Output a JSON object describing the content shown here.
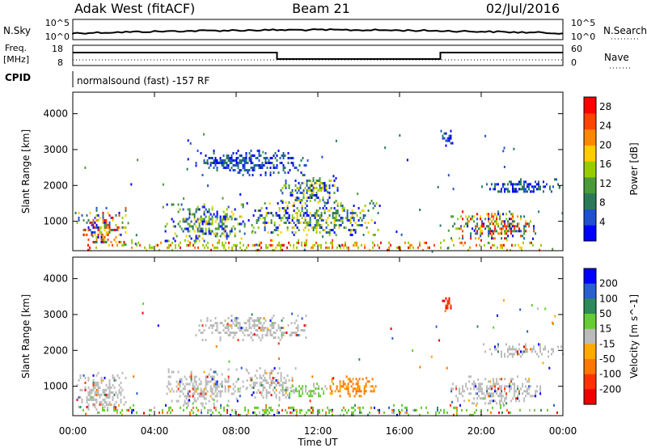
{
  "header": {
    "station": "Adak West (fitACF)",
    "beam": "Beam 21",
    "date": "02/Jul/2016"
  },
  "top_panels": {
    "nsky": {
      "label": "N.Sky",
      "ticks": [
        "10^5",
        "10^0"
      ]
    },
    "nsearch": {
      "label": "N.Search",
      "ticks": [
        "10^5",
        "10^0"
      ]
    },
    "freq": {
      "label_line1": "Freq.",
      "label_line2": "[MHz]",
      "ticks": [
        "18",
        "8"
      ]
    },
    "nave": {
      "label": "Nave",
      "ticks": [
        "60",
        "0"
      ]
    },
    "cpid": {
      "label": "CPID",
      "text": "normalsound (fast) -157 RF"
    }
  },
  "chart_data": [
    {
      "type": "heatmap",
      "panel": "power",
      "ylabel": "Slant Range [km]",
      "xlabel": "Time UT",
      "x_ticks": [
        "00:00",
        "04:00",
        "08:00",
        "12:00",
        "16:00",
        "20:00",
        "00:00"
      ],
      "y_ticks": [
        1000,
        2000,
        3000,
        4000
      ],
      "ylim": [
        180,
        4600
      ],
      "xlim_hours": [
        0,
        24
      ],
      "colorbar": {
        "label": "Power [dB]",
        "tick_labels": [
          "28",
          "24",
          "20",
          "16",
          "12",
          "8",
          "4"
        ],
        "tick_values": [
          28,
          24,
          20,
          16,
          12,
          8,
          4
        ],
        "range": [
          0,
          30
        ]
      },
      "regions": [
        {
          "t0": 0.1,
          "t1": 2.6,
          "r0": 350,
          "r1": 1400,
          "level": "mixed-high"
        },
        {
          "t0": 4.5,
          "t1": 8.5,
          "r0": 450,
          "r1": 1500,
          "level": "mixed"
        },
        {
          "t0": 8.5,
          "t1": 15.0,
          "r0": 600,
          "r1": 1600,
          "level": "mixed"
        },
        {
          "t0": 10.0,
          "t1": 13.0,
          "r0": 1500,
          "r1": 2300,
          "level": "mixed"
        },
        {
          "t0": 6.0,
          "t1": 11.5,
          "r0": 2300,
          "r1": 3000,
          "level": "low"
        },
        {
          "t0": 18.5,
          "t1": 23.0,
          "r0": 500,
          "r1": 1300,
          "level": "mixed-high"
        },
        {
          "t0": 20.0,
          "t1": 24.0,
          "r0": 1800,
          "r1": 2200,
          "level": "low"
        },
        {
          "t0": 18.0,
          "t1": 18.6,
          "r0": 3100,
          "r1": 3550,
          "level": "low"
        },
        {
          "t0": 0.0,
          "t1": 24.0,
          "r0": 200,
          "r1": 500,
          "level": "ground"
        }
      ]
    },
    {
      "type": "heatmap",
      "panel": "velocity",
      "ylabel": "Slant Range [km]",
      "xlabel": "Time UT",
      "x_ticks": [
        "00:00",
        "04:00",
        "08:00",
        "12:00",
        "16:00",
        "20:00",
        "00:00"
      ],
      "y_ticks": [
        1000,
        2000,
        3000,
        4000
      ],
      "ylim": [
        180,
        4600
      ],
      "xlim_hours": [
        0,
        24
      ],
      "colorbar": {
        "label": "Velocity [m s^-1]",
        "tick_labels": [
          "200",
          "100",
          "50",
          "15",
          "-15",
          "-50",
          "-100",
          "-200"
        ],
        "bins": [
          "250",
          "200",
          "100",
          "50",
          "15",
          "-15",
          "-50",
          "-100",
          "-200",
          "-250"
        ]
      },
      "regions": [
        {
          "t0": 0.1,
          "t1": 2.6,
          "r0": 350,
          "r1": 1400,
          "level": "grey"
        },
        {
          "t0": 4.5,
          "t1": 8.5,
          "r0": 450,
          "r1": 1500,
          "level": "grey"
        },
        {
          "t0": 8.5,
          "t1": 11.0,
          "r0": 600,
          "r1": 1600,
          "level": "grey"
        },
        {
          "t0": 10.5,
          "t1": 12.8,
          "r0": 700,
          "r1": 1100,
          "level": "green"
        },
        {
          "t0": 12.5,
          "t1": 14.8,
          "r0": 700,
          "r1": 1300,
          "level": "orange"
        },
        {
          "t0": 6.0,
          "t1": 11.5,
          "r0": 2300,
          "r1": 3000,
          "level": "grey"
        },
        {
          "t0": 18.5,
          "t1": 23.0,
          "r0": 500,
          "r1": 1300,
          "level": "grey"
        },
        {
          "t0": 20.0,
          "t1": 24.0,
          "r0": 1800,
          "r1": 2200,
          "level": "grey"
        },
        {
          "t0": 18.0,
          "t1": 18.6,
          "r0": 3100,
          "r1": 3550,
          "level": "red"
        },
        {
          "t0": 0.0,
          "t1": 24.0,
          "r0": 200,
          "r1": 500,
          "level": "ground"
        }
      ]
    }
  ],
  "colors": {
    "power_scale": [
      "#0000ff",
      "#2050d0",
      "#2a7a5a",
      "#4b9a3a",
      "#99cc00",
      "#ffcc00",
      "#ff8800",
      "#ff4400",
      "#ff0000"
    ],
    "velocity_scale": [
      "#0000ff",
      "#2a5fd0",
      "#2e8a5a",
      "#66cc33",
      "#bbbbbb",
      "#ffaa00",
      "#ff7700",
      "#ff3300",
      "#ee0000"
    ]
  }
}
